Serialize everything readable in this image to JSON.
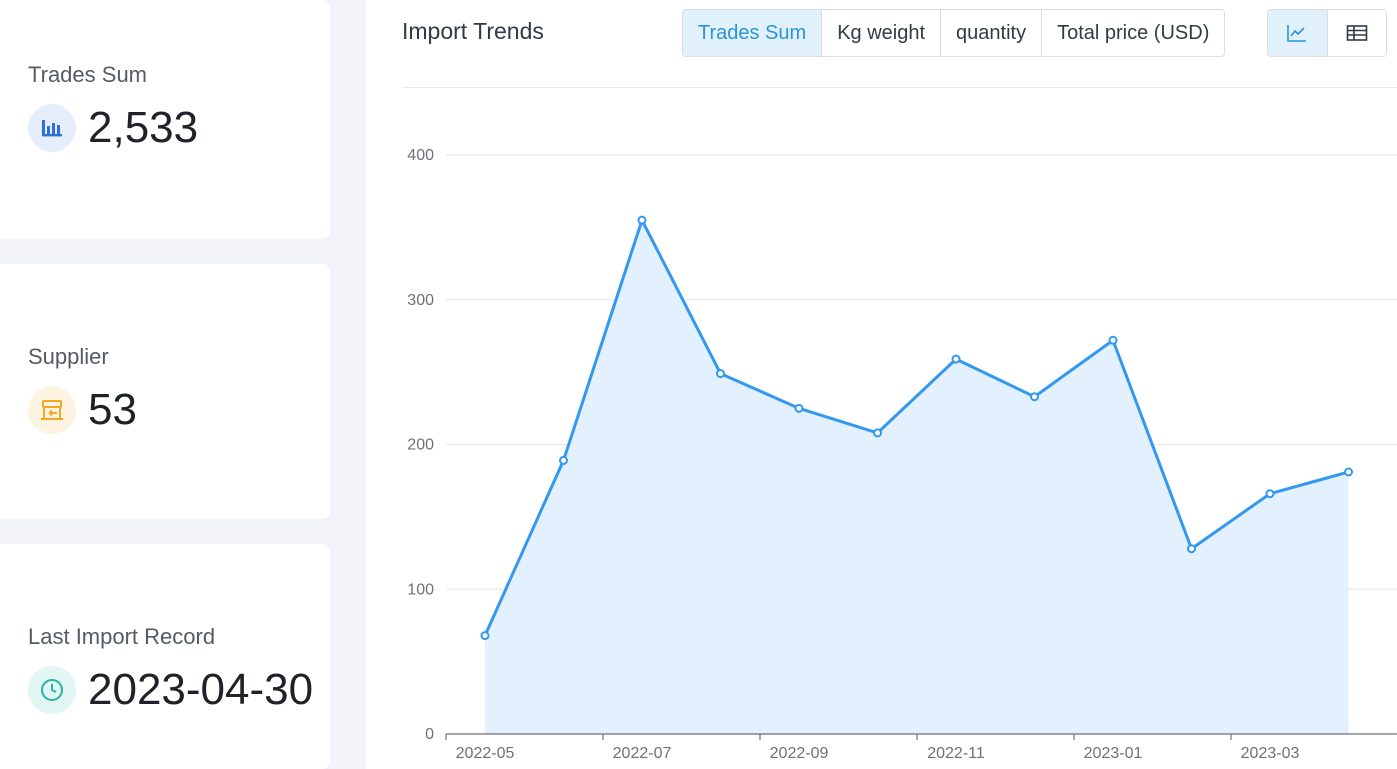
{
  "stats": {
    "trades_sum": {
      "label": "Trades Sum",
      "value": "2,533",
      "icon": "bar-chart-icon",
      "color": "#2f6fd8",
      "bg": "#e6eefb"
    },
    "supplier": {
      "label": "Supplier",
      "value": "53",
      "icon": "store-icon",
      "color": "#f5a623",
      "bg": "#fdf3e1"
    },
    "last_import": {
      "label": "Last Import Record",
      "value": "2023-04-30",
      "icon": "clock-icon",
      "color": "#27b3a8",
      "bg": "#e2f6f4"
    }
  },
  "panel": {
    "title": "Import Trends",
    "metric_tabs": [
      "Trades Sum",
      "Kg weight",
      "quantity",
      "Total price (USD)"
    ],
    "active_metric": "Trades Sum",
    "view_tabs": [
      "line-chart-icon",
      "table-icon"
    ],
    "active_view": "line-chart-icon"
  },
  "chart_data": {
    "type": "area",
    "x": [
      "2022-05",
      "2022-06",
      "2022-07",
      "2022-08",
      "2022-09",
      "2022-10",
      "2022-11",
      "2022-12",
      "2023-01",
      "2023-02",
      "2023-03",
      "2023-04"
    ],
    "x_tick_labels": [
      "2022-05",
      "2022-07",
      "2022-09",
      "2022-11",
      "2023-01",
      "2023-03"
    ],
    "values": [
      68,
      189,
      355,
      249,
      225,
      208,
      259,
      233,
      272,
      128,
      166,
      181
    ],
    "ylim": [
      0,
      400
    ],
    "y_ticks": [
      0,
      100,
      200,
      300,
      400
    ],
    "grid": true,
    "line_color": "#3498f0",
    "fill_color": "#e3f0fd"
  }
}
